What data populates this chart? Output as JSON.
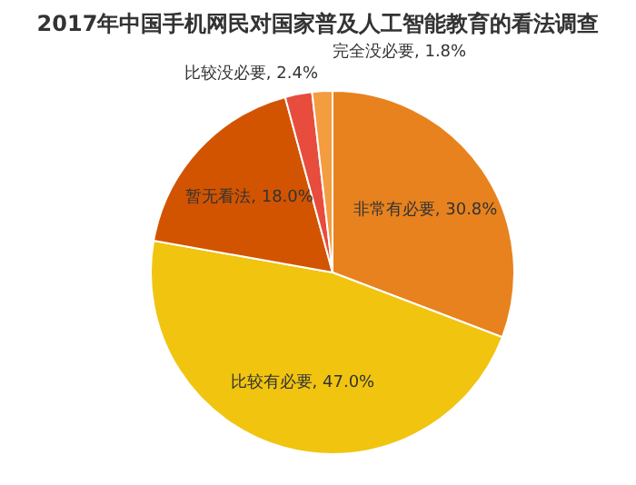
{
  "chart_data": {
    "type": "pie",
    "title": "2017年中国手机网民对国家普及人工智能教育的看法调查",
    "categories": [
      "非常有必要",
      "比较有必要",
      "暂无看法",
      "比较没必要",
      "完全没必要"
    ],
    "values": [
      30.8,
      47.0,
      18.0,
      2.4,
      1.8
    ],
    "value_labels": [
      "30.8%",
      "47.0%",
      "18.0%",
      "2.4%",
      "1.8%"
    ],
    "colors": [
      "#e8821e",
      "#f1c40f",
      "#d35400",
      "#e74c3c",
      "#f39c40"
    ]
  }
}
